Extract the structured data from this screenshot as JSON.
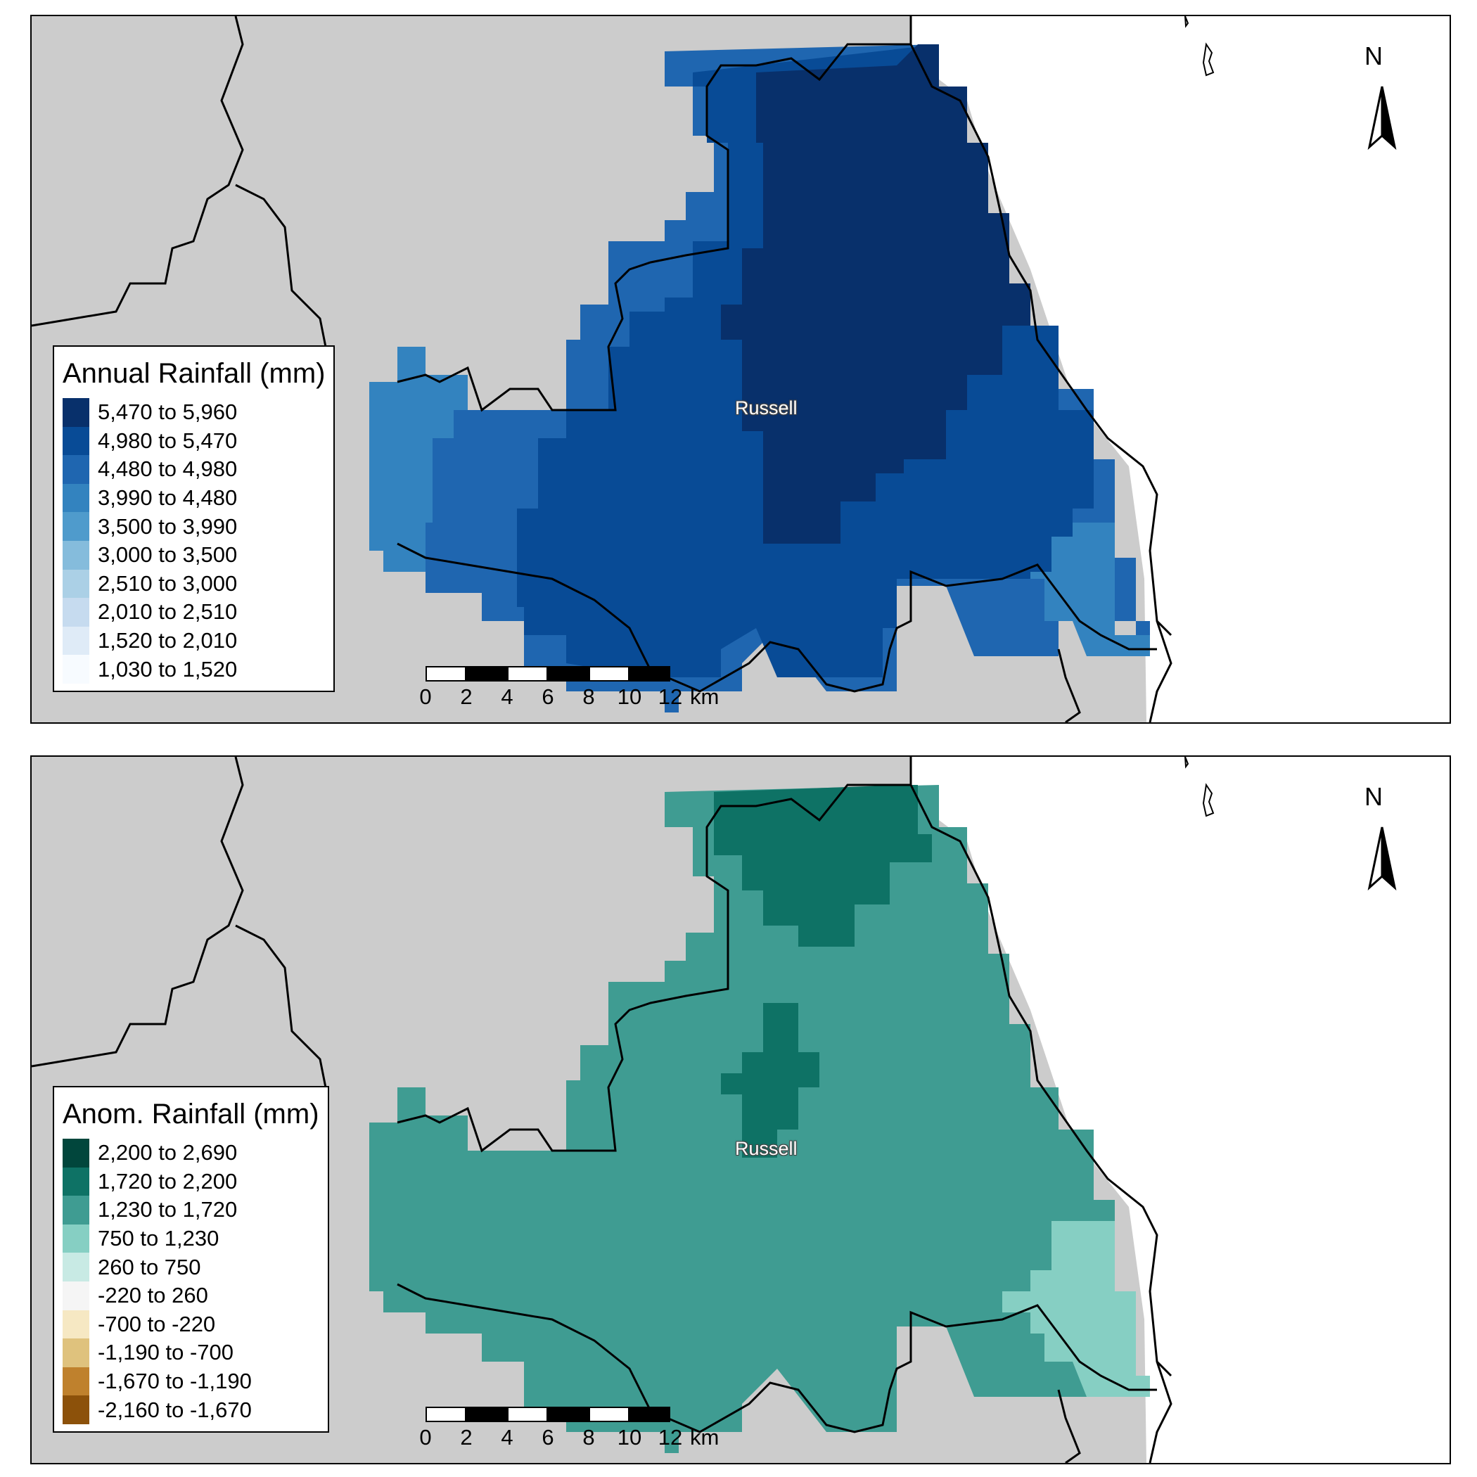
{
  "place": "Russell",
  "north_letter": "N",
  "scale": {
    "ticks": [
      "0",
      "2",
      "4",
      "6",
      "8",
      "10",
      "12"
    ],
    "unit": "km"
  },
  "colors": {
    "land": "#cccccc",
    "sea": "#ffffff",
    "border": "#000000"
  },
  "maps": [
    {
      "legend_title": "Annual Rainfall (mm)",
      "legend": [
        {
          "label": "5,470 to 5,960",
          "color": "#08306b"
        },
        {
          "label": "4,980 to 5,470",
          "color": "#084b96"
        },
        {
          "label": "4,480 to 4,980",
          "color": "#1f66b0"
        },
        {
          "label": "3,990 to 4,480",
          "color": "#3383bf"
        },
        {
          "label": "3,500 to 3,990",
          "color": "#4f9bcc"
        },
        {
          "label": "3,000 to 3,500",
          "color": "#85bcdc"
        },
        {
          "label": "2,510 to 3,000",
          "color": "#abd0e6"
        },
        {
          "label": "2,010 to 2,510",
          "color": "#c6dbef"
        },
        {
          "label": "1,520 to 2,010",
          "color": "#dfebf7"
        },
        {
          "label": "1,030 to 1,520",
          "color": "#f7fbff"
        }
      ]
    },
    {
      "legend_title": "Anom. Rainfall (mm)",
      "legend": [
        {
          "label": "2,200 to 2,690",
          "color": "#01463c"
        },
        {
          "label": "1,720 to 2,200",
          "color": "#0e7265"
        },
        {
          "label": "1,230 to 1,720",
          "color": "#3f9c92"
        },
        {
          "label": "750 to 1,230",
          "color": "#86cfc3"
        },
        {
          "label": "260 to 750",
          "color": "#c8eae4"
        },
        {
          "label": "-220 to 260",
          "color": "#f5f5f5"
        },
        {
          "label": "-700 to -220",
          "color": "#f6e8c3"
        },
        {
          "label": "-1,190 to -700",
          "color": "#dfc27d"
        },
        {
          "label": "-1,670 to -1,190",
          "color": "#bf812d"
        },
        {
          "label": "-2,160 to -1,670",
          "color": "#8c510a"
        }
      ]
    }
  ]
}
